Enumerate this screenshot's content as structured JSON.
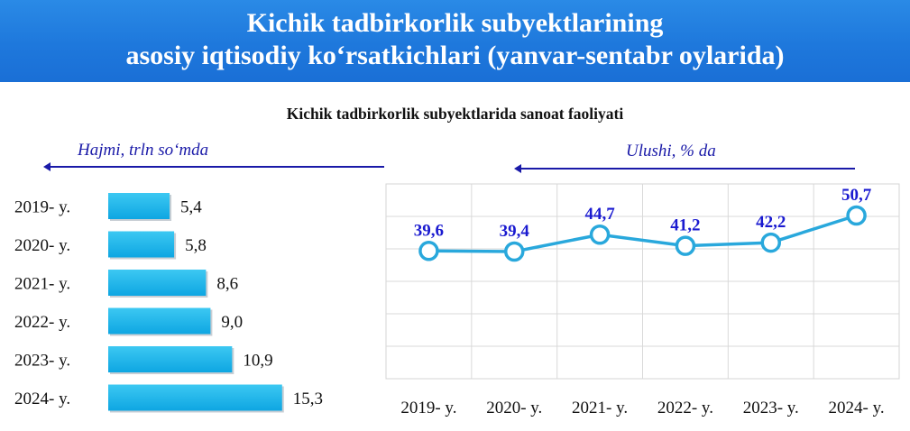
{
  "header": {
    "title_line1": "Kichik tadbirkorlik subyektlarining",
    "title_line2": "asosiy iqtisodiy ko‘rsatkichlari (yanvar-sentabr oylarida)"
  },
  "subtitle": "Kichik tadbirkorlik subyektlarida sanoat faoliyati",
  "left_unit": "Hajmi, trln so‘mda",
  "right_unit": "Ulushi, % da",
  "colors": {
    "banner": "#1e78dc",
    "bar": "#1ab4ea",
    "line": "#29a8dc",
    "label_blue": "#1a1ad0"
  },
  "chart_data": [
    {
      "type": "bar",
      "orientation": "horizontal",
      "title": "",
      "categories": [
        "2019- y.",
        "2020- y.",
        "2021- y.",
        "2022- y.",
        "2023- y.",
        "2024- y."
      ],
      "values": [
        5.4,
        5.8,
        8.6,
        9.0,
        10.9,
        15.3
      ],
      "value_labels": [
        "5,4",
        "5,8",
        "8,6",
        "9,0",
        "10,9",
        "15,3"
      ],
      "xlabel": "",
      "ylabel": "",
      "grid": false
    },
    {
      "type": "line",
      "title": "",
      "categories": [
        "2019- y.",
        "2020- y.",
        "2021- y.",
        "2022- y.",
        "2023- y.",
        "2024- y."
      ],
      "values": [
        39.6,
        39.4,
        44.7,
        41.2,
        42.2,
        50.7
      ],
      "value_labels": [
        "39,6",
        "39,4",
        "44,7",
        "41,2",
        "42,2",
        "50,7"
      ],
      "xlabel": "",
      "ylabel": "",
      "grid": true
    }
  ]
}
